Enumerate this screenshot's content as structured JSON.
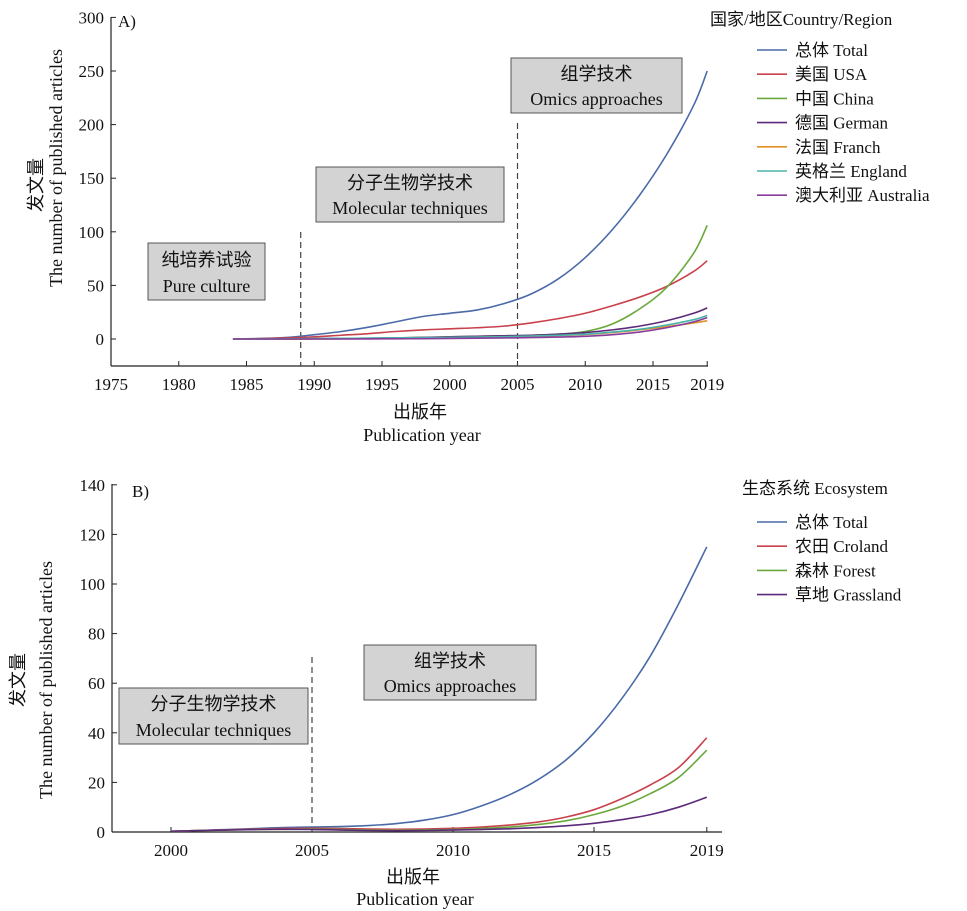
{
  "chart_data": [
    {
      "type": "line",
      "panel_label": "A)",
      "xlabel_zh": "出版年",
      "xlabel_en": "Publication year",
      "ylabel_zh": "发文量",
      "ylabel_en": "The number of published articles",
      "xlim": [
        1975,
        2019
      ],
      "ylim": [
        -25,
        300
      ],
      "xticks": [
        1975,
        1980,
        1985,
        1990,
        1995,
        2000,
        2005,
        2010,
        2015,
        2019
      ],
      "yticks": [
        0,
        50,
        100,
        150,
        200,
        250,
        300
      ],
      "legend_title": "国家/地区Country/Region",
      "legend_position": "top-right",
      "dividers": [
        1989,
        2005
      ],
      "phases": [
        {
          "zh": "纯培养试验",
          "en": "Pure culture"
        },
        {
          "zh": "分子生物学技术",
          "en": "Molecular techniques"
        },
        {
          "zh": "组学技术",
          "en": "Omics approaches"
        }
      ],
      "x": [
        1984,
        1986,
        1988,
        1990,
        1992,
        1994,
        1996,
        1998,
        2000,
        2002,
        2004,
        2006,
        2008,
        2010,
        2012,
        2014,
        2016,
        2018,
        2019
      ],
      "series": [
        {
          "name": "总体 Total",
          "color": "#4a6aa8",
          "values": [
            0,
            0.5,
            1.5,
            4,
            7,
            11,
            16,
            21,
            24,
            27,
            33,
            42,
            56,
            76,
            102,
            134,
            172,
            218,
            250
          ]
        },
        {
          "name": "美国 USA",
          "color": "#c8414b",
          "values": [
            0,
            0.3,
            1,
            2,
            3.5,
            5,
            7,
            8.5,
            9.5,
            10.5,
            12,
            15,
            19,
            24,
            31,
            39,
            49,
            63,
            73
          ]
        },
        {
          "name": "中国 China",
          "color": "#6aa83c",
          "values": [
            0,
            0,
            0,
            0,
            0.2,
            0.5,
            1,
            1.5,
            2,
            2.5,
            3,
            3.5,
            4.5,
            7,
            14,
            28,
            48,
            80,
            106
          ]
        },
        {
          "name": "德国 German",
          "color": "#5c2a7a",
          "values": [
            0,
            0,
            0,
            0.3,
            0.5,
            0.8,
            1,
            1.5,
            2,
            2.5,
            3,
            3.5,
            4.5,
            6,
            8.5,
            12,
            17,
            24,
            29
          ]
        },
        {
          "name": "法国 Franch",
          "color": "#e0922a",
          "values": [
            0,
            0,
            0,
            0.2,
            0.4,
            0.6,
            0.8,
            1,
            1.3,
            1.6,
            2,
            2.5,
            3.2,
            4.2,
            6,
            8.5,
            11.5,
            15,
            17
          ]
        },
        {
          "name": "英格兰 England",
          "color": "#4bb3a8",
          "values": [
            0,
            0,
            0.2,
            0.4,
            0.6,
            0.8,
            1,
            1.2,
            1.5,
            1.8,
            2.2,
            2.8,
            3.5,
            4.5,
            6.5,
            9,
            13,
            18,
            22
          ]
        },
        {
          "name": "澳大利亚 Australia",
          "color": "#8a3c9c",
          "values": [
            0,
            0,
            0,
            0,
            0,
            0.1,
            0.2,
            0.3,
            0.5,
            0.8,
            1,
            1.3,
            1.8,
            2.5,
            4,
            6.5,
            10.5,
            16,
            20
          ]
        }
      ]
    },
    {
      "type": "line",
      "panel_label": "B)",
      "xlabel_zh": "出版年",
      "xlabel_en": "Publication year",
      "ylabel_zh": "发文量",
      "ylabel_en": "The number of published articles",
      "xlim": [
        1998,
        2019
      ],
      "ylim": [
        0,
        140
      ],
      "xticks": [
        2000,
        2005,
        2010,
        2015,
        2019
      ],
      "yticks": [
        0,
        20,
        40,
        60,
        80,
        100,
        120,
        140
      ],
      "legend_title": "生态系统 Ecosystem",
      "legend_position": "top-right",
      "dividers": [
        2005
      ],
      "phases": [
        {
          "zh": "分子生物学技术",
          "en": "Molecular techniques"
        },
        {
          "zh": "组学技术",
          "en": "Omics approaches"
        }
      ],
      "x": [
        2000,
        2001,
        2002,
        2003,
        2004,
        2005,
        2006,
        2007,
        2008,
        2009,
        2010,
        2011,
        2012,
        2013,
        2014,
        2015,
        2016,
        2017,
        2018,
        2019
      ],
      "series": [
        {
          "name": "总体 Total",
          "color": "#4a6aa8",
          "values": [
            0.3,
            0.6,
            1,
            1.4,
            1.8,
            2,
            2.2,
            2.6,
            3.4,
            4.8,
            7,
            10.5,
            15,
            21,
            29,
            40,
            54,
            71,
            92,
            115
          ]
        },
        {
          "name": "农田 Croland",
          "color": "#c8414b",
          "values": [
            0.3,
            0.6,
            0.9,
            1.2,
            1.4,
            1.5,
            1.4,
            1.2,
            1.1,
            1.2,
            1.5,
            2,
            2.8,
            4,
            6,
            9,
            13.5,
            19,
            26,
            38
          ]
        },
        {
          "name": "森林 Forest",
          "color": "#6aa83c",
          "values": [
            0.3,
            0.6,
            0.8,
            1,
            1.1,
            1.2,
            1,
            0.8,
            0.7,
            0.8,
            1,
            1.4,
            2,
            3,
            4.5,
            7,
            10.5,
            15.5,
            22,
            33
          ]
        },
        {
          "name": "草地 Grassland",
          "color": "#5c2a7a",
          "values": [
            0.3,
            0.6,
            0.8,
            1,
            1.1,
            1,
            0.8,
            0.6,
            0.5,
            0.6,
            0.8,
            1,
            1.3,
            1.8,
            2.5,
            3.5,
            5,
            7,
            10,
            14
          ]
        }
      ]
    }
  ]
}
